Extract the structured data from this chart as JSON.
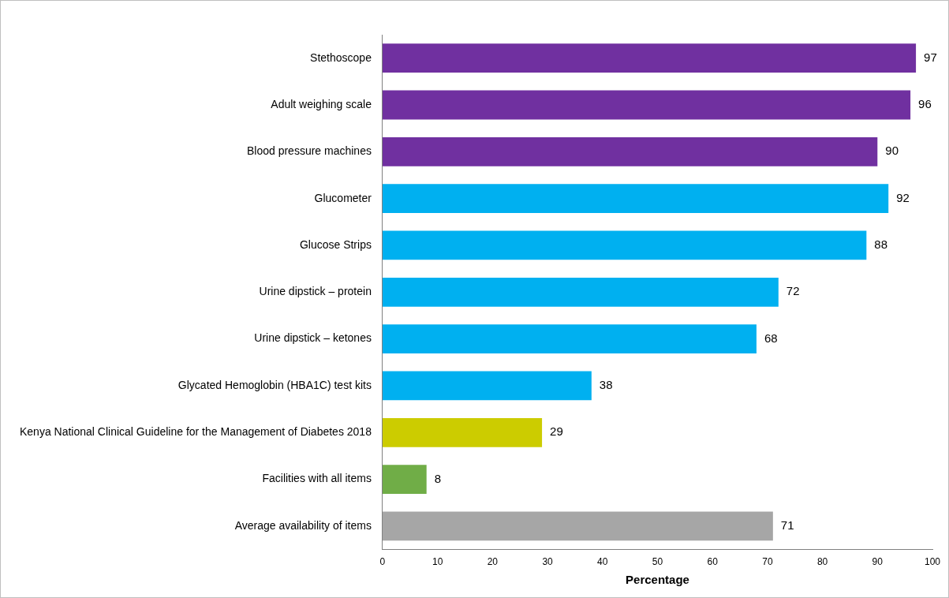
{
  "chart_data": {
    "type": "bar",
    "orientation": "horizontal",
    "xlabel": "Percentage",
    "categories": [
      "Stethoscope",
      "Adult weighing scale",
      "Blood pressure machines",
      "Glucometer",
      "Glucose Strips",
      "Urine dipstick – protein",
      "Urine dipstick – ketones",
      "Glycated Hemoglobin (HBA1C) test kits",
      "Kenya National Clinical Guideline for the Management of Diabetes 2018",
      "Facilities with all items",
      "Average availability of items"
    ],
    "values": [
      97,
      96,
      90,
      92,
      88,
      72,
      68,
      38,
      29,
      8,
      71
    ],
    "colors": [
      "#7030a0",
      "#7030a0",
      "#7030a0",
      "#00b0f0",
      "#00b0f0",
      "#00b0f0",
      "#00b0f0",
      "#00b0f0",
      "#cccc00",
      "#70ad47",
      "#a6a6a6"
    ],
    "xlim": [
      0,
      100
    ],
    "xticks": [
      0,
      10,
      20,
      30,
      40,
      50,
      60,
      70,
      80,
      90,
      100
    ],
    "data_labels": true,
    "grid": false,
    "legend": false
  }
}
